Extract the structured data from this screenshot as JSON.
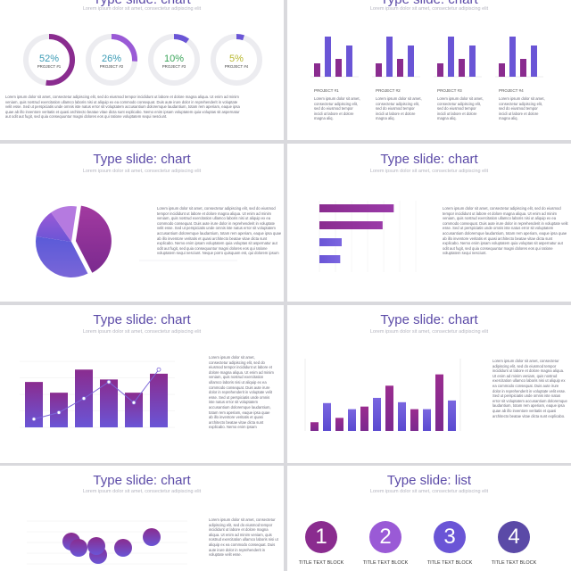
{
  "slides": {
    "s1": {
      "title": "Type slide: chart",
      "subtitle": "Lorem ipsum dolor sit amet, consectetur adipiscing elit",
      "gauges": [
        {
          "value": "52%",
          "label": "PROJECT #1",
          "fraction": 0.52,
          "color": "#8a2c8f",
          "text_color": "#3b9bb5"
        },
        {
          "value": "26%",
          "label": "PROJECT #2",
          "fraction": 0.26,
          "color": "#9a5ad6",
          "text_color": "#3b9bb5"
        },
        {
          "value": "10%",
          "label": "PROJECT #3",
          "fraction": 0.1,
          "color": "#6a55d6",
          "text_color": "#3ba55a"
        },
        {
          "value": "5%",
          "label": "PROJECT #4",
          "fraction": 0.05,
          "color": "#6a55d6",
          "text_color": "#b8b830"
        }
      ],
      "body": "Lorem ipsum dolor sit amet, consectetur adipiscing elit, sed do eiusmod tempor incididunt ut labore et dolore magna aliqua. Ut enim ad minim veniam, quis nostrud exercitation ullamco laboris nisi ut aliquip ex ea commodo consequat. Duis aute irure dolor in reprehenderit in voluptate velit esse. Sed ut perspiciatis unde omnis iste natus error sit voluptatem accusantium doloremque laudantium, totam rem aperiam, eaque ipsa quae ab illo inventore veritatis et quasi architecto beatae vitae dicta sunt explicabo. Nemo enim ipsam voluptatem quia voluptas sit aspernatur aut odit aut fugit, sed quia consequuntur magni dolores eos qui ratione voluptatem sequi nesciunt."
    },
    "s2": {
      "title": "Type slide: chart",
      "subtitle": "Lorem ipsum dolor sit amet, consectetur adipiscing elit",
      "projects": [
        {
          "label": "PROJECT #1",
          "text": "Lorem ipsum dolor sit amet, consectetur adipiscing elit, sed do eiusmod tempor incidi ut labore et dolore magna aliq."
        },
        {
          "label": "PROJECT #2",
          "text": "Lorem ipsum dolor sit amet, consectetur adipiscing elit, sed do eiusmod tempor incidi ut labore et dolore magna aliq."
        },
        {
          "label": "PROJECT #3",
          "text": "Lorem ipsum dolor sit amet, consectetur adipiscing elit, sed do eiusmod tempor incidi ut labore et dolore magna aliq."
        },
        {
          "label": "PROJECT #4",
          "text": "Lorem ipsum dolor sit amet, consectetur adipiscing elit, sed do eiusmod tempor incidi ut labore et dolore magna aliq."
        }
      ]
    },
    "s3": {
      "title": "Type slide: chart",
      "subtitle": "Lorem ipsum dolor sit amet, consectetur adipiscing elit",
      "body": "Lorem ipsum dolor sit amet, consectetur adipiscing elit, sed do eiusmod tempor incididunt ut labore et dolore magna aliqua. Ut enim ad minim veniam, quis nostrud exercitation ullamco laboris nisi ut aliquip ex ea commodo consequat. Duis aute irure dolor in reprehenderit in voluptate velit esse. Sed ut perspiciatis unde omnis iste natus error sit voluptatem accusantium doloremque laudantium, totam rem aperiam, eaque ipsa quae ab illo inventore veritatis et quasi architecto beatae vitae dicta sunt explicabo. Nemo enim ipsam voluptatem quia voluptas sit aspernatur aut odit aut fugit, sed quia consequuntur magni dolores eos qui ratione voluptatem sequi nesciunt. Neque porro quisquam est, qui dolorem ipsum quia dolor sit amet, consectetur, adipisci velit."
    },
    "s4": {
      "title": "Type slide: chart",
      "subtitle": "Lorem ipsum dolor sit amet, consectetur adipiscing elit",
      "body": "Lorem ipsum dolor sit amet, consectetur adipiscing elit, sed do eiusmod tempor incididunt ut labore et dolore magna aliqua. Ut enim ad minim veniam, quis nostrud exercitation ullamco laboris nisi ut aliquip ex ea commodo consequat. Duis aute irure dolor in reprehenderit in voluptate velit esse. Sed ut perspiciatis unde omnis iste natus error sit voluptatem accusantium doloremque laudantium, totam rem aperiam, eaque ipsa quae ab illo inventore veritatis et quasi architecto beatae vitae dicta sunt explicabo. Nemo enim ipsam voluptatem quia voluptas sit aspernatur aut odit aut fugit, sed quia consequuntur magni dolores eos qui ratione voluptatem sequi nesciunt."
    },
    "s5": {
      "title": "Type slide: chart",
      "subtitle": "Lorem ipsum dolor sit amet, consectetur adipiscing elit",
      "body": "Lorem ipsum dolor sit amet, consectetur adipiscing elit, sed do eiusmod tempor incididunt ut labore et dolore magna aliqua. Ut enim ad minim veniam, quis nostrud exercitation ullamco laboris nisi ut aliquip ex ea commodo consequat. Duis aute irure dolor in reprehenderit in voluptate velit esse. Sed ut perspiciatis unde omnis iste natus error sit voluptatem accusantium doloremque laudantium, totam rem aperiam, eaque ipsa quae ab illo inventore veritatis et quasi architecto beatae vitae dicta sunt explicabo. Nemo enim ipsam voluptatem quia voluptas sit aspernatur aut odit aut fugit."
    },
    "s6": {
      "title": "Type slide: chart",
      "subtitle": "Lorem ipsum dolor sit amet, consectetur adipiscing elit",
      "body": "Lorem ipsum dolor sit amet, consectetur adipiscing elit, sed do eiusmod tempor incididunt ut labore et dolore magna aliqua. Ut enim ad minim veniam, quis nostrud exercitation ullamco laboris nisi ut aliquip ex ea commodo consequat. Duis aute irure dolor in reprehenderit in voluptate velit esse. Sed ut perspiciatis unde omnis iste natus error sit voluptatem accusantium doloremque laudantium, totam rem aperiam, eaque ipsa quae ab illo inventore veritatis et quasi architecto beatae vitae dicta sunt explicabo."
    },
    "s7": {
      "title": "Type slide: chart",
      "subtitle": "Lorem ipsum dolor sit amet, consectetur adipiscing elit",
      "body": "Lorem ipsum dolor sit amet, consectetur adipiscing elit, sed do eiusmod tempor incididunt ut labore et dolore magna aliqua. Ut enim ad minim veniam, quis nostrud exercitation ullamco laboris nisi ut aliquip ex ea commodo consequat. Duis aute irure dolor in reprehenderit in voluptate velit esse."
    },
    "s8": {
      "title": "Type slide: list",
      "subtitle": "Lorem ipsum dolor sit amet, consectetur adipiscing elit",
      "items": [
        {
          "number": "1",
          "label": "TITLE TEXT BLOCK",
          "color": "#8a2c8f"
        },
        {
          "number": "2",
          "label": "TITLE TEXT BLOCK",
          "color": "#9a5ad6"
        },
        {
          "number": "3",
          "label": "TITLE TEXT BLOCK",
          "color": "#6a55d6"
        },
        {
          "number": "4",
          "label": "TITLE TEXT BLOCK",
          "color": "#5b4aa7"
        }
      ]
    }
  },
  "colors": {
    "purple": "#8a2c8f",
    "violet": "#6a55d6",
    "lavender": "#9a5ad6",
    "title": "#5b4aa7"
  },
  "chart_data": [
    {
      "type": "bar",
      "slide": "s2",
      "series": [
        {
          "values": [
            3,
            9,
            4,
            7
          ]
        },
        {
          "values": [
            3,
            9,
            4,
            7
          ]
        },
        {
          "values": [
            3,
            9,
            4,
            7
          ]
        },
        {
          "values": [
            3,
            9,
            4,
            7
          ]
        }
      ],
      "ylim": [
        0,
        10
      ]
    },
    {
      "type": "pie",
      "slide": "s3",
      "values": [
        40,
        35,
        13,
        12
      ]
    },
    {
      "type": "bar",
      "slide": "s4",
      "orientation": "horizontal",
      "values": [
        10,
        8.5,
        3,
        2.8
      ],
      "xlim": [
        0,
        12
      ]
    },
    {
      "type": "bar",
      "slide": "s5",
      "values": [
        5.5,
        4.2,
        7,
        5.8,
        4.2,
        6.5
      ],
      "line": [
        1,
        1.8,
        3.5,
        5.5,
        3,
        7
      ],
      "ylim": [
        0,
        8
      ]
    },
    {
      "type": "bar",
      "slide": "s6",
      "values": [
        1,
        3.2,
        1.5,
        2.5,
        2.8,
        3.8,
        5.2,
        3.3,
        2.5,
        2.5,
        6.5,
        3.5
      ],
      "ylim": [
        0,
        8
      ]
    },
    {
      "type": "scatter",
      "slide": "s7",
      "points": [
        [
          1,
          3.5
        ],
        [
          1.3,
          2.8
        ],
        [
          1.6,
          2
        ],
        [
          2,
          3
        ],
        [
          2.5,
          2.8
        ],
        [
          3,
          4
        ]
      ],
      "ylim": [
        0,
        6
      ]
    }
  ]
}
